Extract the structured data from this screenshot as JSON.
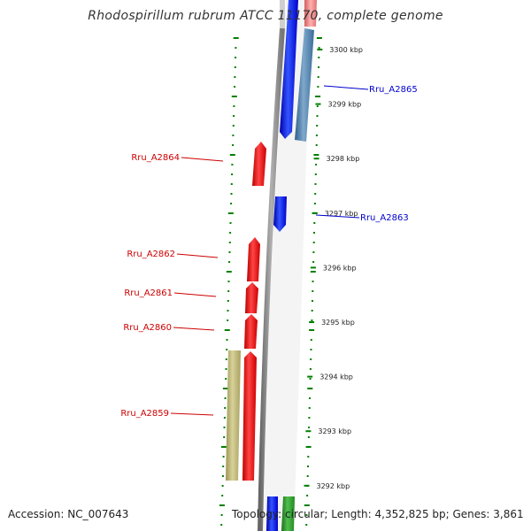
{
  "title": "Rhodospirillum rubrum ATCC 11170, complete genome",
  "footer": {
    "accession": "Accession: NC_007643",
    "topology": "Topology: circular; Length: 4,352,825 bp; Genes: 3,861"
  },
  "colors": {
    "forward_gene": "#0000ff",
    "reverse_gene": "#ff0000",
    "steelblue_feature": "#4682b4",
    "khaki_feature": "#bdb76b",
    "green_feature": "#228b22",
    "pink_feature": "#f08080",
    "tick": "#008000",
    "backbone": "#808080"
  },
  "kbp_labels": [
    "3300 kbp",
    "3299 kbp",
    "3298 kbp",
    "3297 kbp",
    "3296 kbp",
    "3295 kbp",
    "3294 kbp",
    "3293 kbp",
    "3292 kbp"
  ],
  "genes": [
    {
      "label": "Rru_A2865",
      "strand": "forward",
      "color": "#0000cc"
    },
    {
      "label": "Rru_A2864",
      "strand": "reverse",
      "color": "#cc0000"
    },
    {
      "label": "Rru_A2863",
      "strand": "forward",
      "color": "#0000cc"
    },
    {
      "label": "Rru_A2862",
      "strand": "reverse",
      "color": "#cc0000"
    },
    {
      "label": "Rru_A2861",
      "strand": "reverse",
      "color": "#cc0000"
    },
    {
      "label": "Rru_A2860",
      "strand": "reverse",
      "color": "#cc0000"
    },
    {
      "label": "Rru_A2859",
      "strand": "reverse",
      "color": "#cc0000"
    }
  ]
}
